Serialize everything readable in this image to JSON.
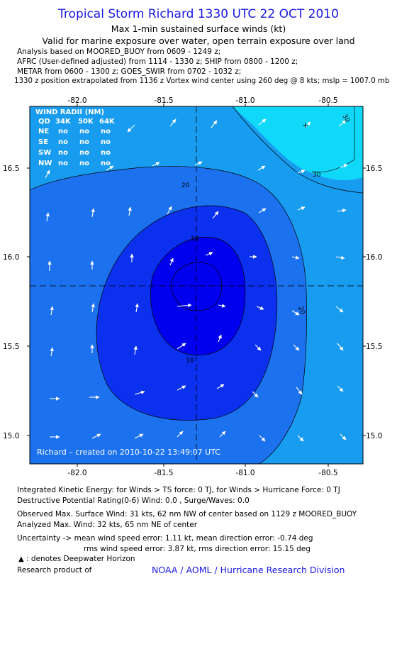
{
  "header": {
    "title": "Tropical Storm Richard 1330 UTC 22 OCT 2010",
    "subtitle1": "Max 1-min sustained surface winds (kt)",
    "subtitle2": "Valid for marine exposure over water, open terrain exposure over land",
    "sources": [
      "Analysis based on MOORED_BUOY from 0609 - 1249 z;",
      "AFRC (User-defined adjusted) from 1114 - 1330 z; SHIP from 0800 - 1200 z;",
      "METAR from 0600 - 1300 z; GOES_SWIR from 0702 - 1032 z;",
      "1330 z position extrapolated from 1136 z Vortex wind center using 260 deg @ 8 kts; mslp = 1007.0 mb"
    ]
  },
  "map": {
    "lon_ticks": [
      "-82.0",
      "-81.5",
      "-81.0",
      "-80.5"
    ],
    "lat_ticks": [
      "16.5",
      "16.0",
      "15.5",
      "15.0"
    ],
    "contour_labels": [
      "30",
      "30",
      "20",
      "10",
      "10",
      "20"
    ],
    "center_lon": -81.28,
    "center_lat": 15.84,
    "wind_radii": {
      "title": "WIND RADII (NM)",
      "header": [
        "QD",
        "34K",
        "50K",
        "64K"
      ],
      "rows": [
        [
          "NE",
          "no",
          "no",
          "no"
        ],
        [
          "SE",
          "no",
          "no",
          "no"
        ],
        [
          "SW",
          "no",
          "no",
          "no"
        ],
        [
          "NW",
          "no",
          "no",
          "no"
        ]
      ]
    },
    "created": "Richard – created on 2010-10-22 13:49:07 UTC",
    "colors": {
      "lt_10": "#0000ee",
      "10_20": "#0b30ee",
      "20_30": "#1c72ee",
      "30_40": "#189cef",
      "40_plus": "#10d8f8"
    }
  },
  "footer": {
    "ike": "Integrated Kinetic Energy:  for Winds > TS force: 0 TJ,  for Winds > Hurricane Force: 0 TJ",
    "dpr": "Destructive Potential Rating(0-6)   Wind: 0.0 , Surge/Waves: 0.0",
    "obs_max": "Observed Max. Surface Wind: 31 kts, 62 nm NW of center based on 1129 z MOORED_BUOY",
    "ana_max": "Analyzed Max. Wind: 32 kts, 65 nm NE of center",
    "unc1": "Uncertainty -> mean wind speed error: 1.11 kt,   mean direction error:  -0.74 deg",
    "unc2": "rms wind speed error: 3.87 kt,   rms direction error: 15.15 deg",
    "dwh": ": denotes Deepwater Horizon",
    "research": "Research product of",
    "org": "NOAA / AOML / Hurricane Research Division"
  }
}
